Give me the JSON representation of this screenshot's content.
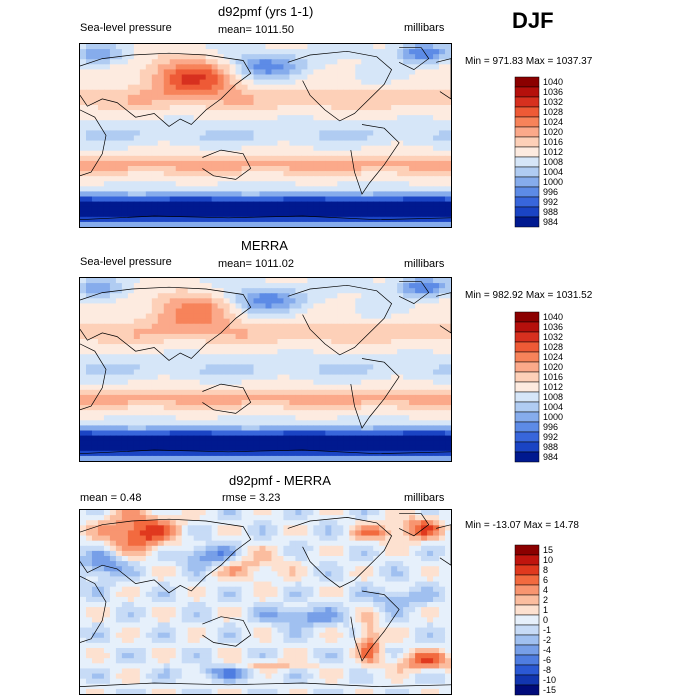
{
  "season": "DJF",
  "panels": [
    {
      "title": "d92pmf (yrs 1-1)",
      "left_label": "Sea-level pressure",
      "center_label": "mean= 1011.50",
      "right_label": "millibars",
      "minmax": "Min = 971.83 Max = 1037.37",
      "palette": "pressure"
    },
    {
      "title": "MERRA",
      "left_label": "Sea-level pressure",
      "center_label": "mean= 1011.02",
      "right_label": "millibars",
      "minmax": "Min = 982.92 Max = 1031.52",
      "palette": "pressure"
    },
    {
      "title": "d92pmf - MERRA",
      "left_label": "mean =    0.48",
      "center_label": "rmse =    3.23",
      "right_label": "millibars",
      "minmax": "Min = -13.07 Max =  14.78",
      "palette": "diff"
    }
  ],
  "chart_data": [
    {
      "type": "heatmap",
      "title": "d92pmf (yrs 1-1)",
      "variable": "Sea-level pressure",
      "units": "millibars",
      "mean": 1011.5,
      "min": 971.83,
      "max": 1037.37,
      "colorbar_levels": [
        "1040",
        "1036",
        "1032",
        "1028",
        "1024",
        "1020",
        "1016",
        "1012",
        "1008",
        "1004",
        "1000",
        "996",
        "992",
        "988",
        "984"
      ]
    },
    {
      "type": "heatmap",
      "title": "MERRA",
      "variable": "Sea-level pressure",
      "units": "millibars",
      "mean": 1011.02,
      "min": 982.92,
      "max": 1031.52,
      "colorbar_levels": [
        "1040",
        "1036",
        "1032",
        "1028",
        "1024",
        "1020",
        "1016",
        "1012",
        "1008",
        "1004",
        "1000",
        "996",
        "992",
        "988",
        "984"
      ]
    },
    {
      "type": "heatmap",
      "title": "d92pmf - MERRA",
      "units": "millibars",
      "mean": 0.48,
      "rmse": 3.23,
      "min": -13.07,
      "max": 14.78,
      "colorbar_levels": [
        "15",
        "10",
        "8",
        "6",
        "4",
        "2",
        "1",
        "0",
        "-1",
        "-2",
        "-4",
        "-6",
        "-8",
        "-10",
        "-15"
      ]
    }
  ],
  "colors": {
    "pressure": [
      "#8b0000",
      "#b5100c",
      "#d7301f",
      "#ee5a36",
      "#f7835a",
      "#fba98a",
      "#fdd0b8",
      "#fdebe0",
      "#d6e6f8",
      "#b0ccf2",
      "#86acec",
      "#5d8be6",
      "#3866db",
      "#1a44c4",
      "#00198f"
    ],
    "diff": [
      "#8b0000",
      "#c0150e",
      "#e0391e",
      "#f26a3f",
      "#f89570",
      "#fbbd9f",
      "#fde1d0",
      "#e6f0fb",
      "#c7dbf6",
      "#a0c0f0",
      "#779fe8",
      "#4f7de1",
      "#2b59d4",
      "#1236b0",
      "#000b7a"
    ]
  }
}
